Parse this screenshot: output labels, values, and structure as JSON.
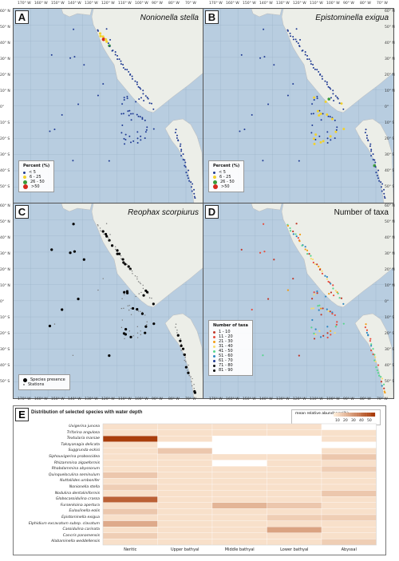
{
  "panels": [
    {
      "id": "A",
      "title": "Nonionella stella",
      "legend_title": "Percent (%)",
      "legend": [
        "< 5",
        "6 - 25",
        "26 - 50",
        ">50"
      ],
      "legend_colors": [
        "#1f3a93",
        "#f2d22e",
        "#3a9a3a",
        "#d62a1e"
      ]
    },
    {
      "id": "B",
      "title": "Epistominella exigua",
      "legend_title": "Percent (%)",
      "legend": [
        "< 5",
        "6 - 25",
        "26 - 50",
        ">50"
      ],
      "legend_colors": [
        "#1f3a93",
        "#f2d22e",
        "#3a9a3a",
        "#d62a1e"
      ]
    },
    {
      "id": "C",
      "title": "Reophax scorpiurus",
      "legend_items": [
        "Species presence",
        "Stations"
      ]
    },
    {
      "id": "D",
      "title": "Number of taxa",
      "legend_title": "Number of taxa",
      "legend": [
        "1 - 10",
        "11 - 20",
        "21 - 30",
        "31 - 40",
        "41 - 50",
        "51 - 60",
        "61 - 70",
        "71 - 80",
        "81 - 90"
      ],
      "legend_colors": [
        "#c0392b",
        "#e74c3c",
        "#f39c12",
        "#f7dc6f",
        "#58d68d",
        "#2e86c1",
        "#1f3a93",
        "#111111",
        "#000000"
      ]
    }
  ],
  "axes": {
    "lon_top": [
      "170° W",
      "160° W",
      "150° W",
      "140° W",
      "130° W",
      "120° W",
      "110° W",
      "100° W",
      "90° W",
      "80° W",
      "70° W"
    ],
    "lon_top_right": [
      "170° W",
      "160° W",
      "150° W",
      "140° W",
      "130° W",
      "120° W",
      "110° W",
      "100° W",
      "90° W",
      "80° W",
      "70° W"
    ],
    "lat_left": [
      "60° N",
      "50° N",
      "40° N",
      "30° N",
      "20° N",
      "10° N",
      "0°",
      "10° S",
      "20° S",
      "30° S",
      "40° S",
      "50° S"
    ],
    "lat_right": [
      "60° N",
      "50° N",
      "40° N",
      "30° N",
      "20° N",
      "10° N",
      "0°",
      "10° S",
      "20° S",
      "30° S",
      "40° S",
      "50° S"
    ]
  },
  "heatmap": {
    "label": "E",
    "title": "Distribution of selected species with water depth",
    "legend_title": "mean relative abundance(%)",
    "legend_ticks": [
      "10",
      "20",
      "30",
      "40",
      "50"
    ],
    "categories": [
      "Neritic",
      "Upper bathyal",
      "Middle bathyal",
      "Lower bathyal",
      "Abyssal"
    ],
    "species": [
      "Uvigerina juncea",
      "Trifarina angulosa",
      "Textularia marsae",
      "Takayanagia delicata",
      "Suggrunda eckisi",
      "Siphouvigerina proboscidea",
      "Rhizammina algaeformis",
      "Rhabdammina abyssorum",
      "Quinqueloculina seminulum",
      "Nuttallides umbonifer",
      "Nonionella stella",
      "Nodulina dentaliniformis",
      "Globocassidulina crassa",
      "Fursenkoina apertura",
      "Euloulinella eolis",
      "Epistominella exigua",
      "Elphidium excavatum subsp. clavatum",
      "Cassidulina carinata",
      "Cancris panamensis",
      "Alabaminella weddellensis"
    ],
    "values": [
      [
        3,
        3,
        3,
        3,
        0
      ],
      [
        3,
        3,
        3,
        3,
        3
      ],
      [
        48,
        3,
        0,
        0,
        3
      ],
      [
        3,
        0,
        0,
        0,
        0
      ],
      [
        3,
        10,
        0,
        0,
        3
      ],
      [
        3,
        3,
        3,
        3,
        10
      ],
      [
        3,
        3,
        0,
        3,
        3
      ],
      [
        3,
        3,
        3,
        3,
        8
      ],
      [
        10,
        3,
        3,
        3,
        3
      ],
      [
        3,
        3,
        3,
        3,
        3
      ],
      [
        8,
        3,
        3,
        3,
        3
      ],
      [
        3,
        3,
        3,
        3,
        10
      ],
      [
        38,
        3,
        3,
        3,
        3
      ],
      [
        3,
        3,
        15,
        10,
        3
      ],
      [
        10,
        3,
        3,
        3,
        3
      ],
      [
        3,
        3,
        3,
        8,
        8
      ],
      [
        18,
        3,
        3,
        3,
        3
      ],
      [
        3,
        3,
        3,
        20,
        3
      ],
      [
        8,
        3,
        3,
        3,
        3
      ],
      [
        3,
        3,
        3,
        3,
        8
      ]
    ]
  }
}
